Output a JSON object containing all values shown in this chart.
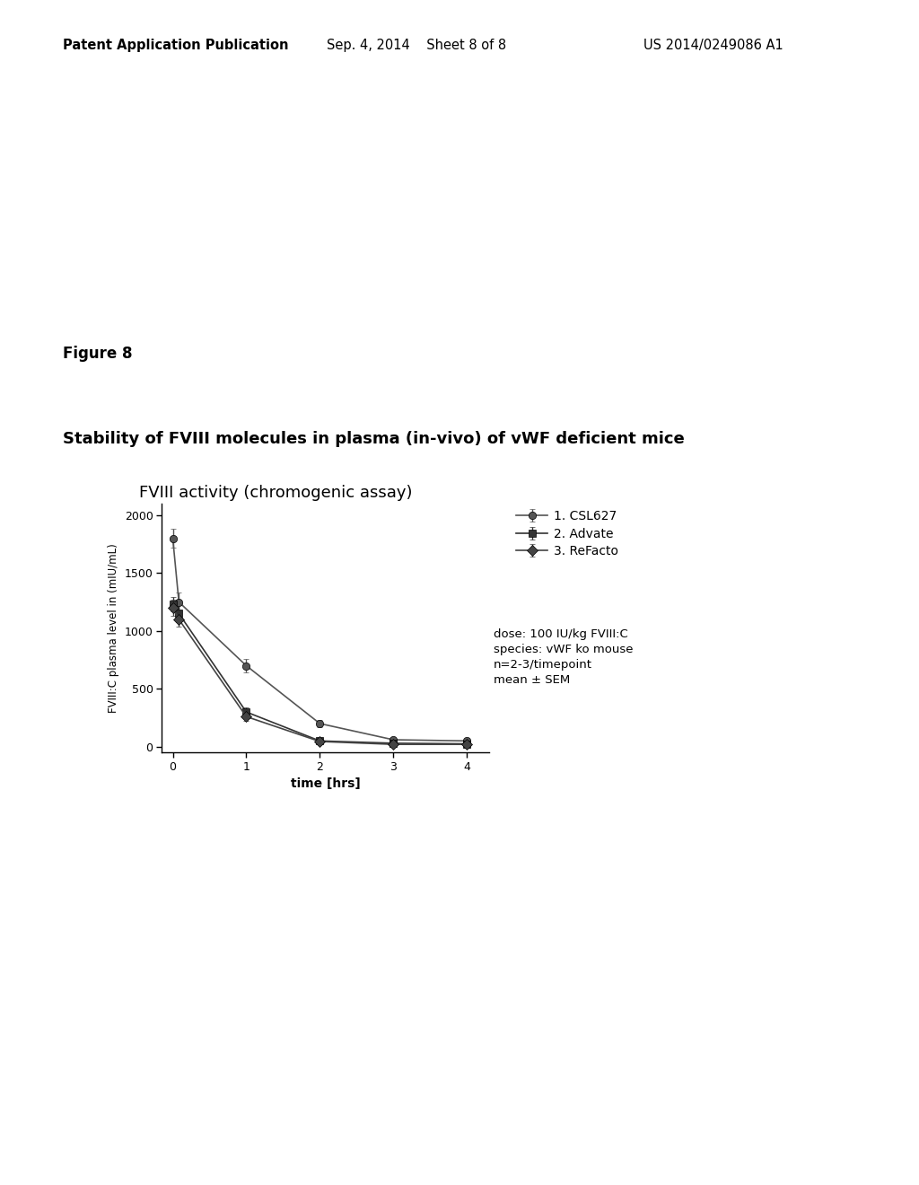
{
  "title_above": "Stability of FVIII molecules in plasma (in-vivo) of vWF deficient mice",
  "chart_title": "FVIII activity (chromogenic assay)",
  "xlabel": "time [hrs]",
  "ylabel": "FVIII:C plasma level in (mIU/mL)",
  "header_left": "Patent Application Publication",
  "header_center": "Sep. 4, 2014    Sheet 8 of 8",
  "header_right": "US 2014/0249086 A1",
  "figure_label": "Figure 8",
  "annotation_text": "dose: 100 IU/kg FVIII:C\nspecies: vWF ko mouse\nn=2-3/timepoint\nmean ± SEM",
  "series": [
    {
      "label": "1. CSL627",
      "marker": "o",
      "color": "#555555",
      "x": [
        0,
        0.083,
        1,
        2,
        3,
        4
      ],
      "y": [
        1800,
        1250,
        700,
        200,
        60,
        50
      ],
      "yerr": [
        80,
        80,
        60,
        30,
        10,
        10
      ]
    },
    {
      "label": "2. Advate",
      "marker": "s",
      "color": "#333333",
      "x": [
        0,
        0.083,
        1,
        2,
        3,
        4
      ],
      "y": [
        1230,
        1150,
        300,
        50,
        30,
        25
      ],
      "yerr": [
        60,
        70,
        40,
        15,
        8,
        8
      ]
    },
    {
      "label": "3. ReFacto",
      "marker": "D",
      "color": "#444444",
      "x": [
        0,
        0.083,
        1,
        2,
        3,
        4
      ],
      "y": [
        1200,
        1100,
        260,
        45,
        20,
        20
      ],
      "yerr": [
        70,
        60,
        35,
        12,
        6,
        6
      ]
    }
  ],
  "xlim": [
    -0.15,
    4.3
  ],
  "ylim": [
    -50,
    2100
  ],
  "xticks": [
    0,
    1,
    2,
    3,
    4
  ],
  "yticks": [
    0,
    500,
    1000,
    1500,
    2000
  ],
  "background_color": "#ffffff"
}
